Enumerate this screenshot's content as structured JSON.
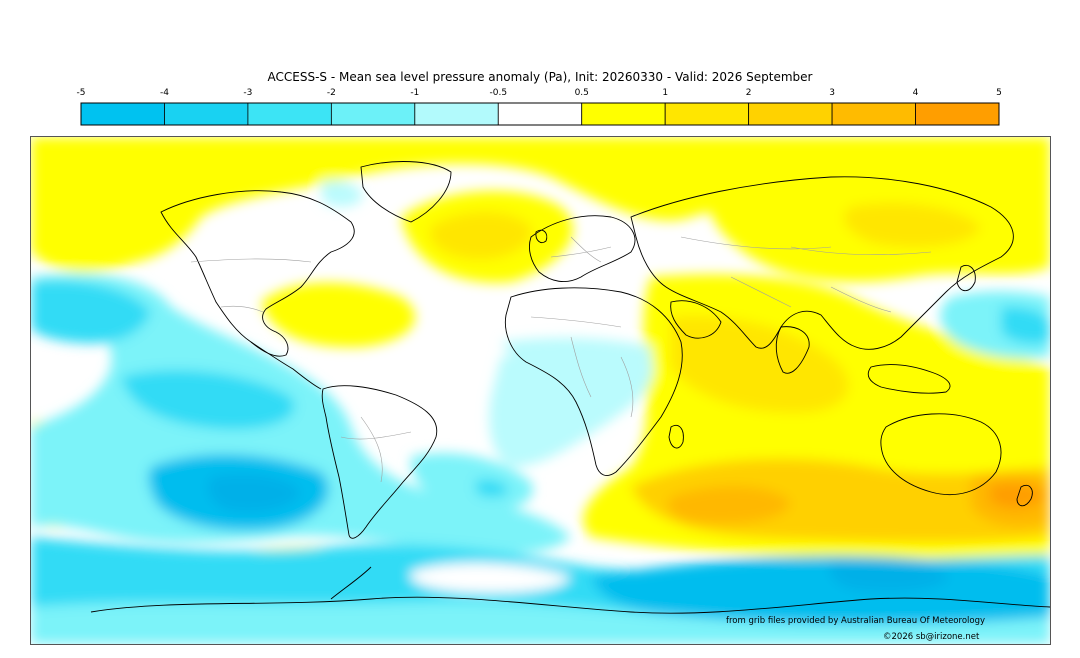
{
  "title": "ACCESS-S - Mean sea level pressure anomaly (Pa), Init: 20260330 - Valid: 2026 September",
  "colorbar": {
    "ticks": [
      "-5",
      "-4",
      "-3",
      "-2",
      "-1",
      "-0.5",
      "0.5",
      "1",
      "2",
      "3",
      "4",
      "5"
    ],
    "bin_colors": [
      "#00c2f0",
      "#19d2f2",
      "#3ce4f5",
      "#6cf1f8",
      "#b2fafc",
      "#ffffff",
      "#ffff00",
      "#ffe600",
      "#ffd200",
      "#ffbb00",
      "#ff9e00"
    ]
  },
  "legend_colors": {
    "neg_strong": "#00bdee",
    "neg_mid": "#33dbf5",
    "neg_light": "#7cf3f9",
    "neg_faint": "#bafbfd",
    "neutral": "#ffffff",
    "pos_faint": "#ffff00",
    "pos_light": "#ffe600",
    "pos_mid": "#ffd000",
    "pos_strong": "#ffb800",
    "pos_max": "#ff9e00",
    "coast": "#000000",
    "border": "#a0a0a0"
  },
  "credits": {
    "source": "from grib files provided by Australian Bureau Of Meteorology",
    "copyright": "©2026 sb@irizone.net"
  }
}
